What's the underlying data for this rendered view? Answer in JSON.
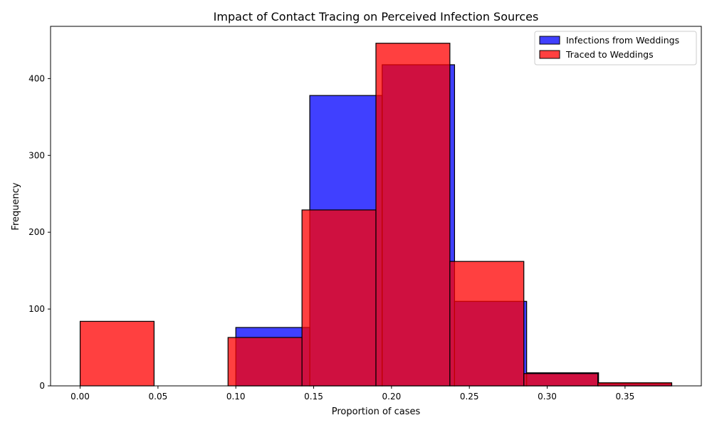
{
  "chart_data": {
    "type": "bar",
    "title": "Impact of Contact Tracing on Perceived Infection Sources",
    "xlabel": "Proportion of cases",
    "ylabel": "Frequency",
    "xlim": [
      -0.019,
      0.399
    ],
    "ylim": [
      0,
      468
    ],
    "xticks": [
      "0.00",
      "0.05",
      "0.10",
      "0.15",
      "0.20",
      "0.25",
      "0.30",
      "0.35"
    ],
    "yticks": [
      "0",
      "100",
      "200",
      "300",
      "400"
    ],
    "legend_position": "top-right",
    "series": [
      {
        "name": "Infections from Weddings",
        "color": "#0000ff",
        "bins": [
          {
            "x0": 0.0,
            "x1": 0.0475,
            "value": 0
          },
          {
            "x0": 0.0475,
            "x1": 0.0952,
            "value": 0
          },
          {
            "x0": 0.1,
            "x1": 0.1475,
            "value": 76
          },
          {
            "x0": 0.1475,
            "x1": 0.194,
            "value": 378
          },
          {
            "x0": 0.194,
            "x1": 0.2405,
            "value": 418
          },
          {
            "x0": 0.2405,
            "x1": 0.2868,
            "value": 110
          },
          {
            "x0": 0.2868,
            "x1": 0.333,
            "value": 17
          },
          {
            "x0": 0.333,
            "x1": 0.38,
            "value": 3
          }
        ]
      },
      {
        "name": "Traced to Weddings",
        "color": "#ff0000",
        "bins": [
          {
            "x0": 0.0,
            "x1": 0.0475,
            "value": 84
          },
          {
            "x0": 0.0475,
            "x1": 0.095,
            "value": 0
          },
          {
            "x0": 0.095,
            "x1": 0.1425,
            "value": 63
          },
          {
            "x0": 0.1425,
            "x1": 0.19,
            "value": 229
          },
          {
            "x0": 0.19,
            "x1": 0.2375,
            "value": 446
          },
          {
            "x0": 0.2375,
            "x1": 0.285,
            "value": 162
          },
          {
            "x0": 0.285,
            "x1": 0.3325,
            "value": 16
          },
          {
            "x0": 0.3325,
            "x1": 0.38,
            "value": 4
          }
        ]
      }
    ]
  }
}
